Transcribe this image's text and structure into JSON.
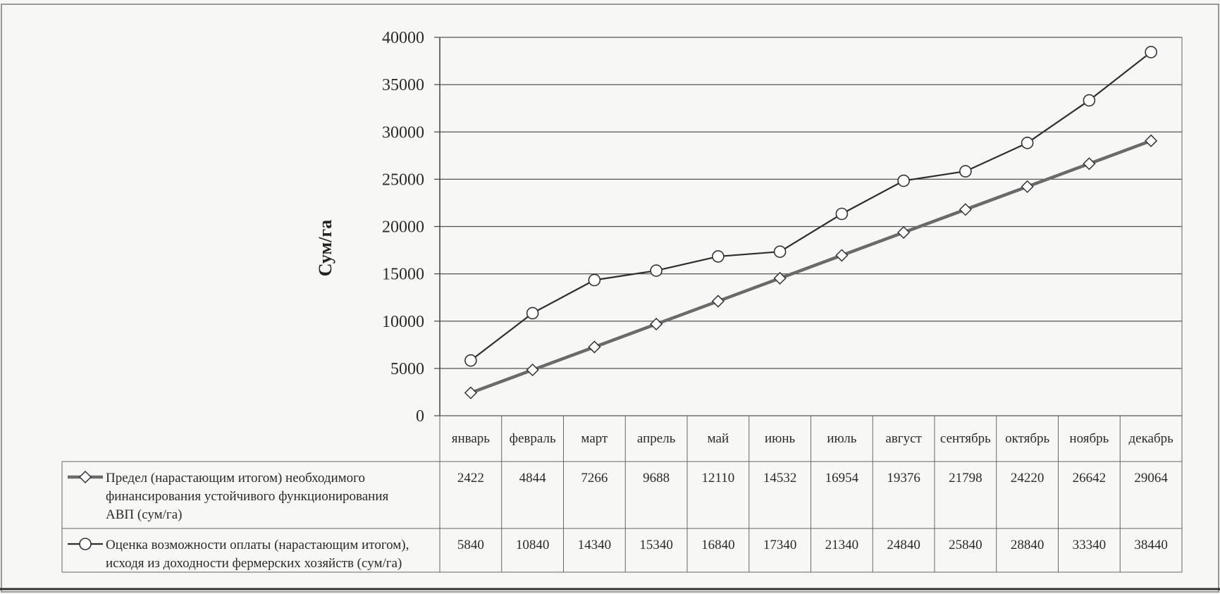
{
  "chart_data": {
    "type": "line",
    "ylabel": "Сум/га",
    "ylim": [
      0,
      40000
    ],
    "yticks": [
      "40000",
      "35000",
      "30000",
      "25000",
      "20000",
      "15000",
      "10000",
      "5000",
      "0"
    ],
    "categories": [
      "январь",
      "февраль",
      "март",
      "апрель",
      "май",
      "июнь",
      "июль",
      "август",
      "сентябрь",
      "октябрь",
      "ноябрь",
      "декабрь"
    ],
    "series": [
      {
        "name": "Предел (нарастающим итогом) необходимого финансирования устойчивого функционирования АВП (сум/га)",
        "name_lines": [
          "Предел (нарастающим итогом) необходимого",
          "финансирования устойчивого функционирования",
          "АВП (сум/га)"
        ],
        "marker": "diamond",
        "values": [
          2422,
          4844,
          7266,
          9688,
          12110,
          14532,
          16954,
          19376,
          21798,
          24220,
          26642,
          29064
        ]
      },
      {
        "name": "Оценка возможности оплаты (нарастающим итогом), исходя из доходности фермерских хозяйств (сум/га)",
        "name_lines": [
          "Оценка возможности оплаты (нарастающим итогом),",
          "исходя из доходности фермерских хозяйств (сум/га)"
        ],
        "marker": "circle",
        "values": [
          5840,
          10840,
          14340,
          15340,
          16840,
          17340,
          21340,
          24840,
          25840,
          28840,
          33340,
          38440
        ]
      }
    ],
    "grid": true,
    "legend": "data-table"
  }
}
